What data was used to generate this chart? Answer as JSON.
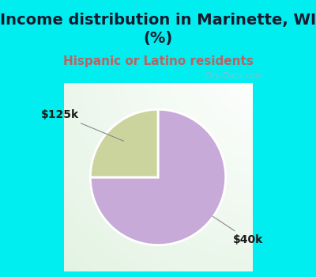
{
  "title": "Income distribution in Marinette, WI\n(%)",
  "subtitle": "Hispanic or Latino residents",
  "slices": [
    75,
    25
  ],
  "slice_colors": [
    "#c8aad8",
    "#ccd49e"
  ],
  "bg_color": "#00eef0",
  "chart_box_color": "#f0f8f0",
  "title_color": "#1a1a2e",
  "subtitle_color": "#c06060",
  "label_color": "#1a1a1a",
  "watermark": "City-Data.com",
  "label_40k": "$40k",
  "label_125k": "$125k",
  "title_fontsize": 14,
  "subtitle_fontsize": 11
}
